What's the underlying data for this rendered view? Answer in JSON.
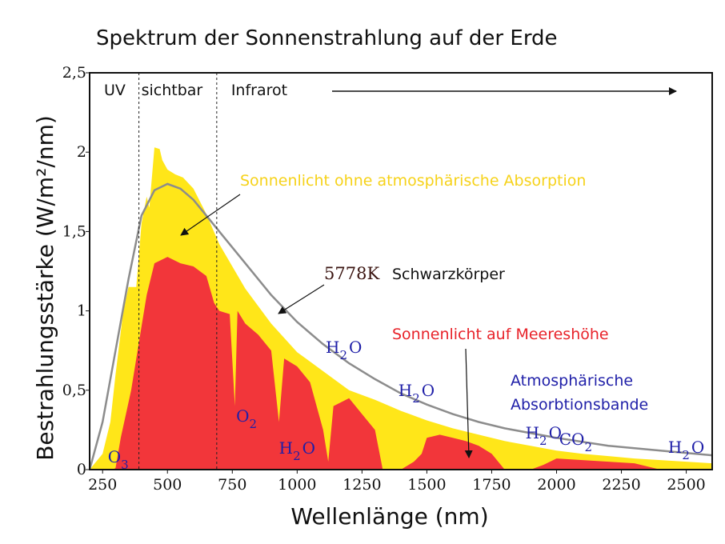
{
  "chart_data": {
    "type": "area",
    "title": "Spektrum der Sonnenstrahlung auf der Erde",
    "xlabel": "Wellenlänge (nm)",
    "ylabel": "Bestrahlungsstärke (W/m²/nm)",
    "xlim": [
      200,
      2600
    ],
    "ylim": [
      0,
      2.5
    ],
    "xticks": [
      "250",
      "500",
      "750",
      "1000",
      "1250",
      "1500",
      "1750",
      "2000",
      "2250",
      "2500"
    ],
    "yticks": [
      "0",
      "0,5",
      "1",
      "1,5",
      "2",
      "2,5"
    ],
    "regions": [
      {
        "label": "UV",
        "from": 200,
        "to": 390
      },
      {
        "label": "sichtbar",
        "from": 390,
        "to": 690
      },
      {
        "label": "Infrarot",
        "from": 690,
        "to": 2600
      }
    ],
    "colors": {
      "extraterrestrial": "#ffe619",
      "sea_level": "#f2363a",
      "blackbody": "#8c8c8c",
      "absorption_text": "#1f1fa8",
      "title_text": "#111111"
    },
    "series": [
      {
        "name": "Sonnenlicht ohne atmosphärische Absorption",
        "x": [
          200,
          250,
          280,
          300,
          330,
          350,
          380,
          400,
          420,
          430,
          450,
          470,
          480,
          500,
          530,
          560,
          600,
          650,
          700,
          750,
          800,
          900,
          1000,
          1100,
          1200,
          1300,
          1400,
          1500,
          1600,
          1700,
          1800,
          1900,
          2000,
          2100,
          2200,
          2300,
          2400,
          2500,
          2600
        ],
        "y": [
          0.0,
          0.1,
          0.3,
          0.6,
          1.0,
          1.15,
          1.15,
          1.55,
          1.72,
          1.65,
          2.03,
          2.02,
          1.95,
          1.89,
          1.86,
          1.84,
          1.77,
          1.61,
          1.42,
          1.28,
          1.14,
          0.92,
          0.74,
          0.62,
          0.5,
          0.44,
          0.37,
          0.31,
          0.26,
          0.22,
          0.18,
          0.15,
          0.12,
          0.1,
          0.085,
          0.07,
          0.06,
          0.05,
          0.04
        ]
      },
      {
        "name": "Sonnenlicht auf Meereshöhe",
        "x": [
          290,
          300,
          320,
          360,
          400,
          420,
          450,
          500,
          550,
          600,
          650,
          680,
          700,
          740,
          760,
          770,
          800,
          850,
          900,
          930,
          950,
          1000,
          1050,
          1100,
          1120,
          1140,
          1200,
          1250,
          1300,
          1330,
          1400,
          1450,
          1480,
          1500,
          1550,
          1600,
          1650,
          1700,
          1750,
          1800,
          1900,
          1950,
          2000,
          2100,
          2200,
          2300,
          2400
        ],
        "y": [
          0.0,
          0.01,
          0.2,
          0.5,
          0.9,
          1.1,
          1.3,
          1.34,
          1.3,
          1.28,
          1.22,
          1.05,
          1.0,
          0.98,
          0.4,
          1.0,
          0.92,
          0.85,
          0.75,
          0.3,
          0.7,
          0.65,
          0.55,
          0.25,
          0.05,
          0.4,
          0.45,
          0.35,
          0.25,
          0.0,
          0.0,
          0.05,
          0.1,
          0.2,
          0.22,
          0.2,
          0.18,
          0.15,
          0.1,
          0.0,
          0.0,
          0.03,
          0.07,
          0.06,
          0.05,
          0.04,
          0.0
        ]
      },
      {
        "name": "5778K Schwarzkörper",
        "x": [
          200,
          250,
          300,
          350,
          400,
          450,
          500,
          550,
          600,
          700,
          800,
          900,
          1000,
          1100,
          1200,
          1300,
          1400,
          1500,
          1600,
          1700,
          1800,
          1900,
          2000,
          2200,
          2400,
          2600
        ],
        "y": [
          0.0,
          0.3,
          0.75,
          1.2,
          1.6,
          1.76,
          1.8,
          1.77,
          1.7,
          1.5,
          1.3,
          1.1,
          0.93,
          0.79,
          0.67,
          0.57,
          0.48,
          0.41,
          0.35,
          0.3,
          0.26,
          0.23,
          0.2,
          0.15,
          0.12,
          0.09
        ]
      }
    ],
    "annotations": {
      "without_absorption": "Sonnenlicht ohne atmosphärische Absorption",
      "blackbody_temp": "5778K",
      "blackbody_word": "Schwarzkörper",
      "sea_level": "Sonnenlicht auf Meereshöhe",
      "absorption_line1": "Atmosphärische",
      "absorption_line2": "Absorbtionsbande"
    },
    "absorbers": [
      {
        "base": "O",
        "sub": "3",
        "x": 270
      },
      {
        "base": "O",
        "sub": "2",
        "x": 765
      },
      {
        "base": "H",
        "sub": "2",
        "tail": "O",
        "x": 930
      },
      {
        "base": "H",
        "sub": "2",
        "tail": "O",
        "x": 1110
      },
      {
        "base": "H",
        "sub": "2",
        "tail": "O",
        "x": 1390
      },
      {
        "base": "H",
        "sub": "2",
        "tail": "O",
        "x": 1880
      },
      {
        "base": "CO",
        "sub": "2",
        "x": 2010
      },
      {
        "base": "H",
        "sub": "2",
        "tail": "O",
        "x": 2430
      }
    ]
  }
}
